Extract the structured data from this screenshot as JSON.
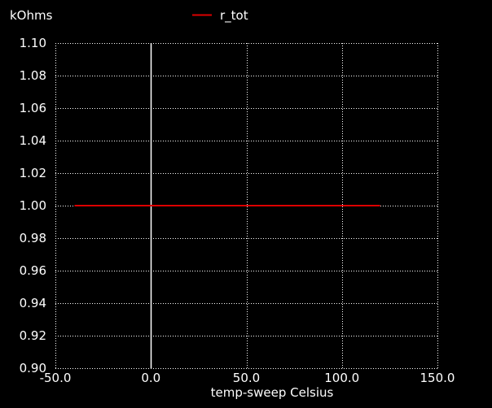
{
  "chart_data": {
    "type": "line",
    "title": "",
    "ylabel": "kOhms",
    "xlabel": "temp-sweep  Celsius",
    "xlim": [
      -50,
      150
    ],
    "ylim": [
      0.9,
      1.1
    ],
    "x_ticks": [
      -50,
      0,
      50,
      100,
      150
    ],
    "x_tick_labels": [
      "-50.0",
      "0.0",
      "50.0",
      "100.0",
      "150.0"
    ],
    "y_ticks": [
      0.9,
      0.92,
      0.94,
      0.96,
      0.98,
      1.0,
      1.02,
      1.04,
      1.06,
      1.08,
      1.1
    ],
    "y_tick_labels": [
      "0.90",
      "0.92",
      "0.94",
      "0.96",
      "0.98",
      "1.00",
      "1.02",
      "1.04",
      "1.06",
      "1.08",
      "1.10"
    ],
    "grid": true,
    "legend_position": "top-center",
    "zero_line_x": 0,
    "series": [
      {
        "name": "r_tot",
        "color": "#dd0000",
        "x": [
          -40,
          120
        ],
        "y": [
          1.0,
          1.0
        ]
      }
    ]
  }
}
